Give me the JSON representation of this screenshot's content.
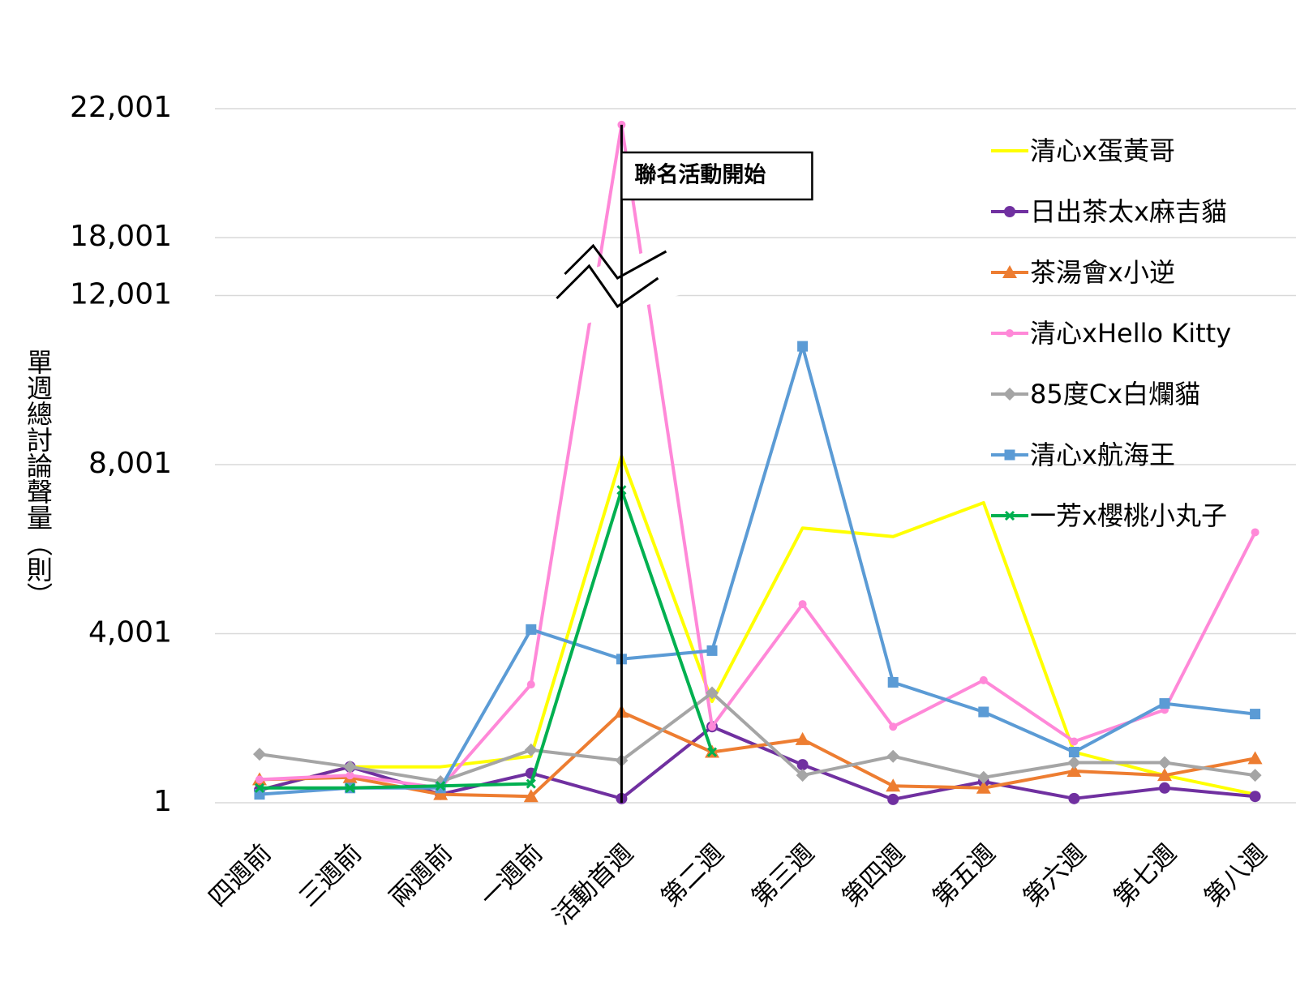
{
  "chart_data": {
    "type": "line",
    "title": "",
    "xlabel": "",
    "ylabel": "單週總討論聲量（則）",
    "categories": [
      "四週前",
      "三週前",
      "兩週前",
      "一週前",
      "活動首週",
      "第二週",
      "第三週",
      "第四週",
      "第五週",
      "第六週",
      "第七週",
      "第八週"
    ],
    "y_ticks": [
      "1",
      "4,001",
      "8,001",
      "12,001",
      "18,001",
      "22,001"
    ],
    "y_tick_values": [
      1,
      4001,
      8001,
      12001,
      18001,
      22001
    ],
    "axis_break": {
      "from": 12001,
      "to": 18001
    },
    "ylim": [
      1,
      22001
    ],
    "grid": true,
    "legend_position": "top-right",
    "annotation": {
      "text": "聯名活動開始",
      "at_category": "活動首週"
    },
    "series": [
      {
        "name": "清心x蛋黃哥",
        "color": "#FFFF00",
        "marker": "none",
        "values": [
          300,
          850,
          850,
          1100,
          8200,
          2400,
          6500,
          6300,
          7100,
          1200,
          650,
          200
        ]
      },
      {
        "name": "日出茶太x麻吉貓",
        "color": "#7030A0",
        "marker": "circle",
        "values": [
          300,
          850,
          200,
          700,
          100,
          1800,
          900,
          80,
          500,
          100,
          350,
          150
        ]
      },
      {
        "name": "茶湯會x小逆",
        "color": "#ED7D31",
        "marker": "triangle",
        "values": [
          550,
          600,
          200,
          150,
          2150,
          1200,
          1500,
          400,
          350,
          750,
          650,
          1050
        ]
      },
      {
        "name": "清心xHello Kitty",
        "color": "#FF88D8",
        "marker": "small-circle",
        "values": [
          550,
          650,
          350,
          2800,
          21500,
          1800,
          4700,
          1800,
          2900,
          1450,
          2200,
          6400
        ]
      },
      {
        "name": "85度Cx白爛貓",
        "color": "#A5A5A5",
        "marker": "diamond",
        "values": [
          1150,
          850,
          500,
          1250,
          1000,
          2600,
          650,
          1100,
          600,
          950,
          950,
          650
        ]
      },
      {
        "name": "清心x航海王",
        "color": "#5B9BD5",
        "marker": "square",
        "values": [
          200,
          350,
          350,
          4100,
          3400,
          3600,
          10800,
          2850,
          2150,
          1200,
          2350,
          2100
        ]
      },
      {
        "name": "一芳x櫻桃小丸子",
        "color": "#00B050",
        "marker": "x",
        "values": [
          350,
          350,
          400,
          450,
          7400,
          1200,
          null,
          null,
          null,
          null,
          null,
          null
        ]
      }
    ]
  }
}
